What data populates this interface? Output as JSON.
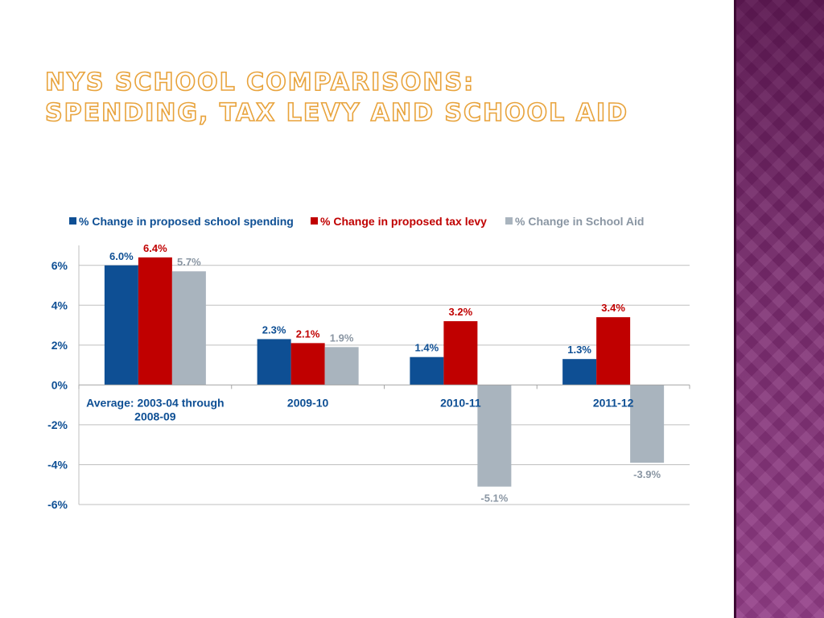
{
  "slide": {
    "title_line1": "NYS School Comparisons:",
    "title_line2": "Spending, Tax Levy and School Aid",
    "title_color": "#e8a33c",
    "accent_band_color": "#7a2a6e"
  },
  "chart_data": {
    "type": "bar",
    "title": "",
    "xlabel": "",
    "ylabel": "",
    "categories": [
      "Average:  2003-04 through 2008-09",
      "2009-10",
      "2010-11",
      "2011-12"
    ],
    "category_lines": [
      [
        "Average:  2003-04 through",
        "2008-09"
      ],
      [
        "2009-10"
      ],
      [
        "2010-11"
      ],
      [
        "2011-12"
      ]
    ],
    "series": [
      {
        "name": "% Change in proposed school spending",
        "values": [
          6.0,
          2.3,
          1.4,
          1.3
        ],
        "color": "#0e4f94"
      },
      {
        "name": "% Change in proposed tax levy",
        "values": [
          6.4,
          2.1,
          3.2,
          3.4
        ],
        "color": "#c00000"
      },
      {
        "name": "% Change in School Aid",
        "values": [
          5.7,
          1.9,
          -5.1,
          -3.9
        ],
        "color": "#a9b4be"
      }
    ],
    "ylim": [
      -6,
      7
    ],
    "yticks": [
      -6,
      -4,
      -2,
      0,
      2,
      4,
      6
    ],
    "ytick_format": "percent",
    "data_label_format": "one_decimal_percent",
    "grid": true,
    "legend_position": "top"
  }
}
